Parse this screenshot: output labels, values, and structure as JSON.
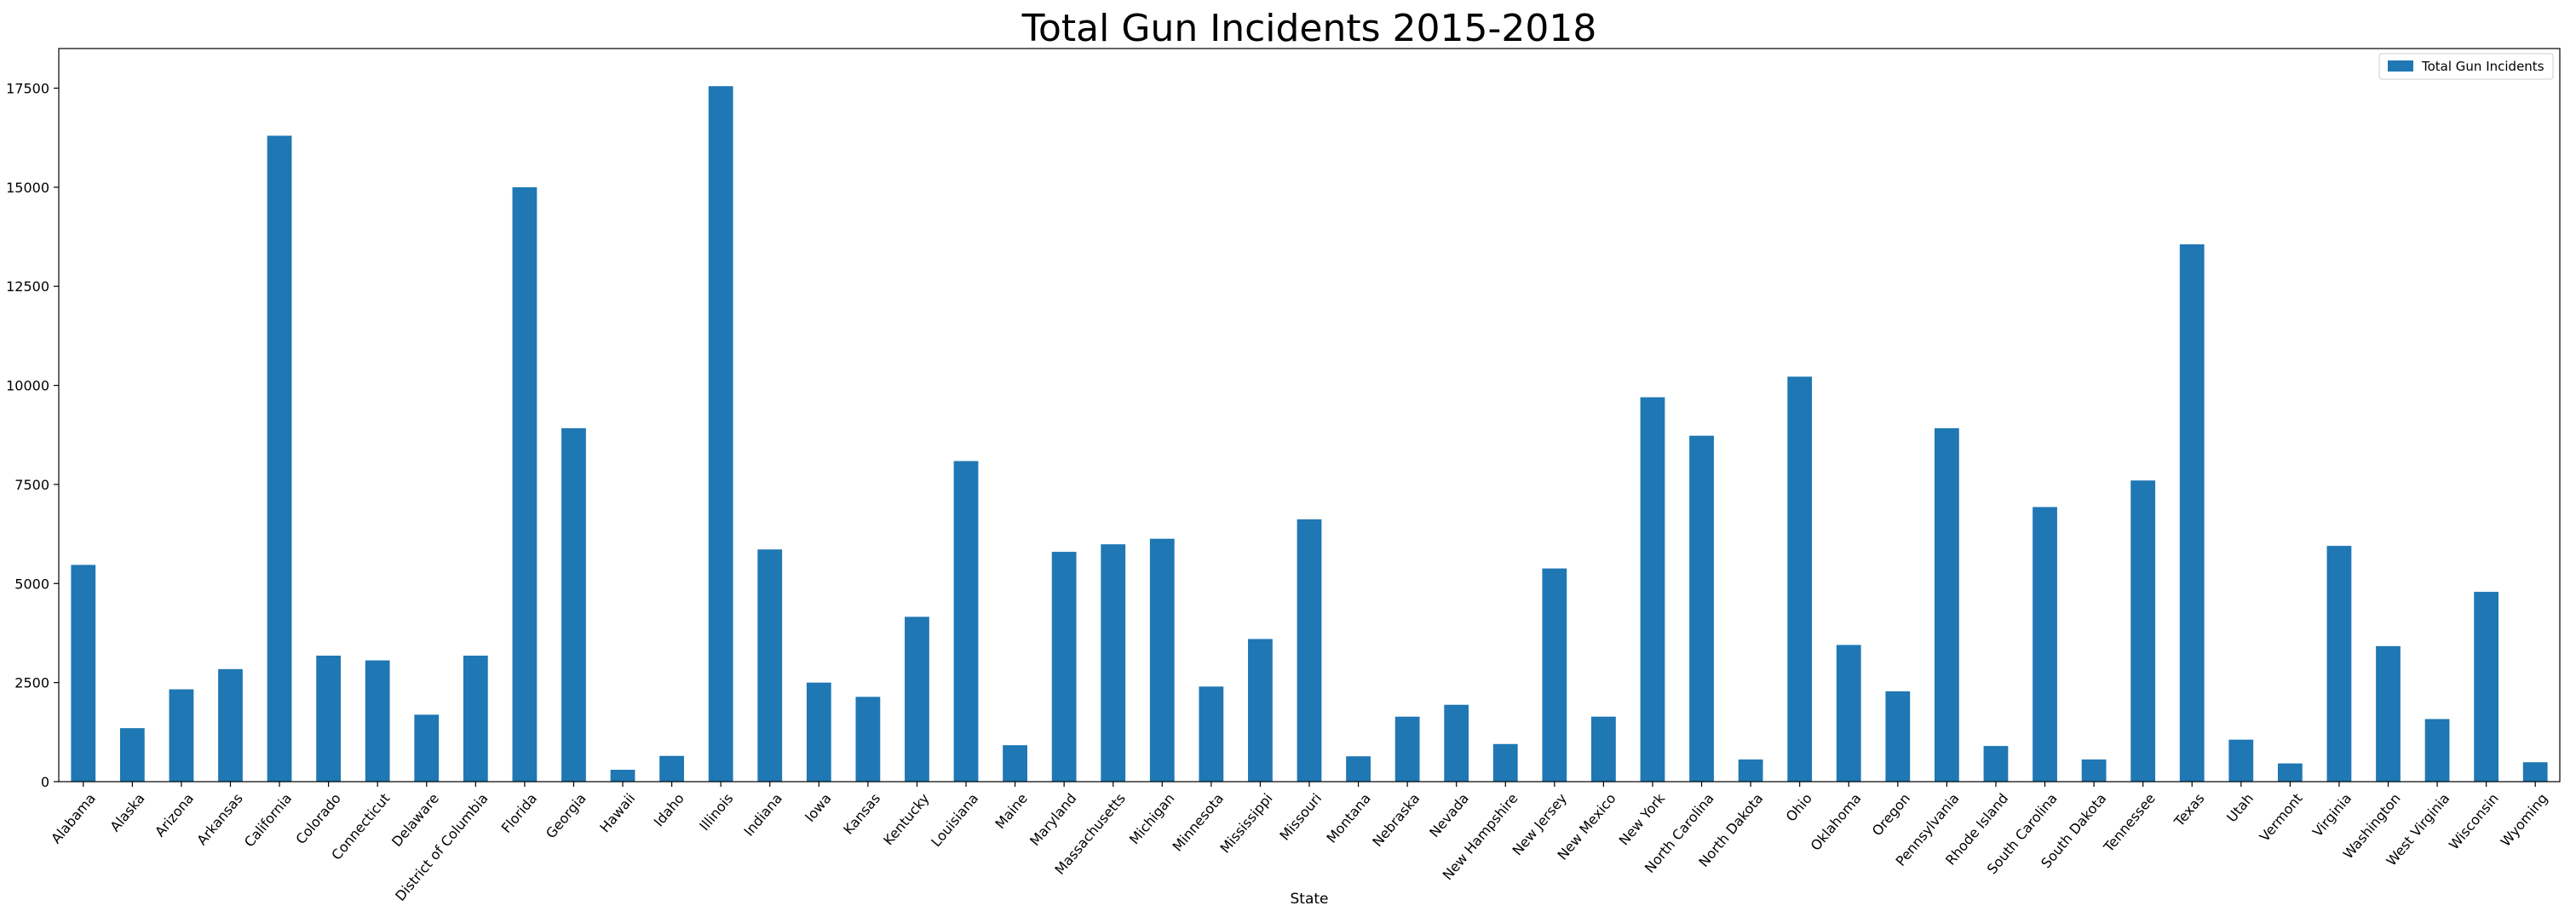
{
  "chart_data": {
    "type": "bar",
    "title": "Total Gun Incidents 2015-2018",
    "xlabel": "State",
    "ylabel": "",
    "ylim": [
      0,
      18500
    ],
    "yticks": [
      0,
      2500,
      5000,
      7500,
      10000,
      12500,
      15000,
      17500
    ],
    "grid": false,
    "legend_position": "top-right",
    "bar_color": "#1f77b4",
    "categories": [
      "Alabama",
      "Alaska",
      "Arizona",
      "Arkansas",
      "California",
      "Colorado",
      "Connecticut",
      "Delaware",
      "District of Columbia",
      "Florida",
      "Georgia",
      "Hawaii",
      "Idaho",
      "Illinois",
      "Indiana",
      "Iowa",
      "Kansas",
      "Kentucky",
      "Louisiana",
      "Maine",
      "Maryland",
      "Massachusetts",
      "Michigan",
      "Minnesota",
      "Mississippi",
      "Missouri",
      "Montana",
      "Nebraska",
      "Nevada",
      "New Hampshire",
      "New Jersey",
      "New Mexico",
      "New York",
      "North Carolina",
      "North Dakota",
      "Ohio",
      "Oklahoma",
      "Oregon",
      "Pennsylvania",
      "Rhode Island",
      "South Carolina",
      "South Dakota",
      "Tennessee",
      "Texas",
      "Utah",
      "Vermont",
      "Virginia",
      "Washington",
      "West Virginia",
      "Wisconsin",
      "Wyoming"
    ],
    "series": [
      {
        "name": "Total Gun Incidents",
        "values": [
          5470,
          1350,
          2330,
          2840,
          16300,
          3180,
          3060,
          1690,
          3180,
          15000,
          8920,
          300,
          650,
          17550,
          5860,
          2500,
          2140,
          4160,
          8090,
          920,
          5800,
          5990,
          6130,
          2400,
          3600,
          6620,
          640,
          1640,
          1940,
          950,
          5380,
          1640,
          9700,
          8730,
          560,
          10220,
          3450,
          2280,
          8920,
          900,
          6930,
          560,
          7600,
          13560,
          1060,
          460,
          5950,
          3420,
          1580,
          4790,
          490
        ]
      }
    ]
  }
}
